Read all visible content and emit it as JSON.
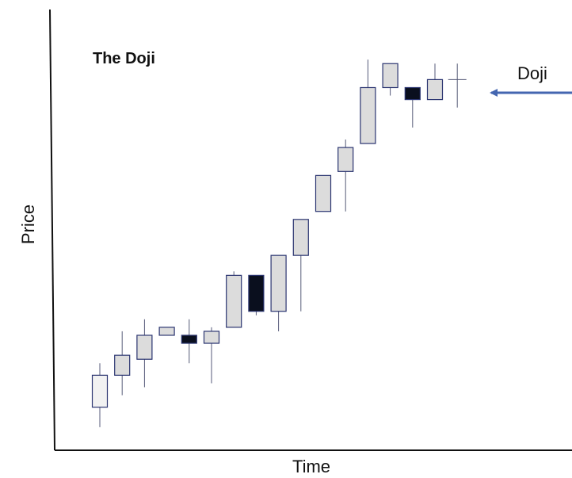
{
  "chart_data": {
    "type": "candlestick",
    "title": "The Doji",
    "xlabel": "Time",
    "ylabel": "Price",
    "ylim": [
      0,
      100
    ],
    "grid": false,
    "colors": {
      "up_fill": "#dcdcdc",
      "up_fill_light": "#f2f2f2",
      "down_fill": "#0a0f1e",
      "candle_border": "#2a3470",
      "arrow": "#4466b0",
      "axis": "#111111"
    },
    "candles": [
      {
        "open": 8,
        "high": 19,
        "low": 3,
        "close": 16,
        "fill": "up_fill_light"
      },
      {
        "open": 16,
        "high": 27,
        "low": 11,
        "close": 21,
        "fill": "up_fill"
      },
      {
        "open": 20,
        "high": 30,
        "low": 13,
        "close": 26,
        "fill": "up_fill"
      },
      {
        "open": 26,
        "high": 28,
        "low": 26,
        "close": 28,
        "fill": "up_fill"
      },
      {
        "open": 26,
        "high": 30,
        "low": 19,
        "close": 24,
        "fill": "down_fill"
      },
      {
        "open": 24,
        "high": 28,
        "low": 14,
        "close": 27,
        "fill": "up_fill"
      },
      {
        "open": 28,
        "high": 42,
        "low": 28,
        "close": 41,
        "fill": "up_fill"
      },
      {
        "open": 41,
        "high": 41,
        "low": 31,
        "close": 32,
        "fill": "down_fill"
      },
      {
        "open": 32,
        "high": 46,
        "low": 27,
        "close": 46,
        "fill": "up_fill"
      },
      {
        "open": 46,
        "high": 55,
        "low": 32,
        "close": 55,
        "fill": "up_fill"
      },
      {
        "open": 57,
        "high": 66,
        "low": 57,
        "close": 66,
        "fill": "up_fill"
      },
      {
        "open": 67,
        "high": 75,
        "low": 57,
        "close": 73,
        "fill": "up_fill"
      },
      {
        "open": 74,
        "high": 95,
        "low": 74,
        "close": 88,
        "fill": "up_fill"
      },
      {
        "open": 88,
        "high": 93,
        "low": 86,
        "close": 94,
        "fill": "up_fill"
      },
      {
        "open": 85,
        "high": 88,
        "low": 78,
        "close": 88,
        "fill": "down_fill"
      },
      {
        "open": 85,
        "high": 94,
        "low": 85,
        "close": 90,
        "fill": "up_fill"
      },
      {
        "open": 90,
        "high": 94,
        "low": 83,
        "close": 90,
        "fill": "up_fill",
        "doji": true
      }
    ],
    "annotations": [
      {
        "text": "Doji",
        "target_index": 16
      }
    ]
  }
}
